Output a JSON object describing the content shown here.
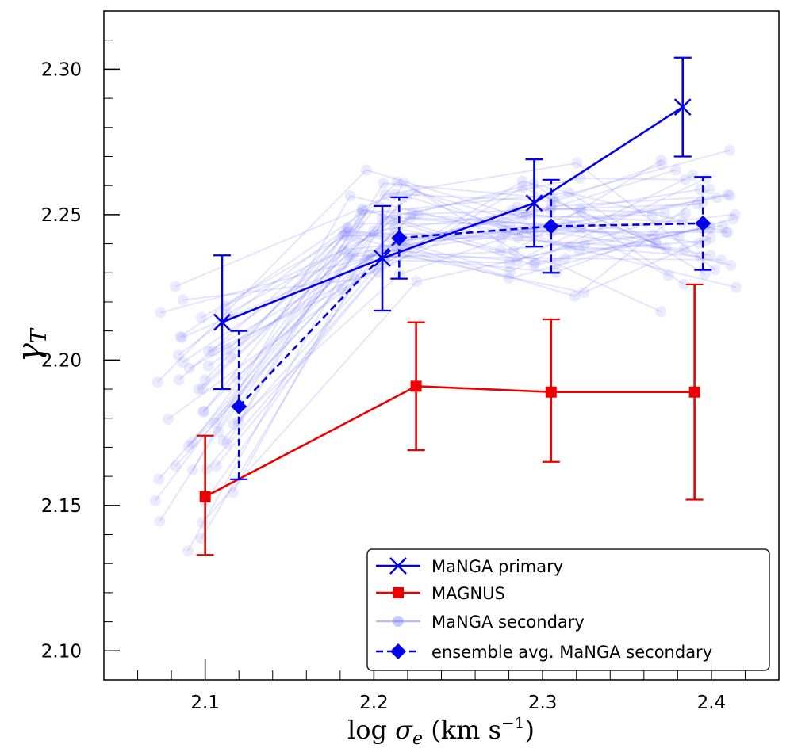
{
  "chart_data": {
    "type": "line",
    "xlabel": "log σ_e (km s^-1)",
    "xlabel_parts": {
      "pre": "log ",
      "sigma": "σ",
      "sub": "e",
      "units": " (km s",
      "exp": "−1",
      "close": ")"
    },
    "ylabel": "γ_T",
    "ylabel_parts": {
      "gamma": "γ",
      "sub": "T"
    },
    "xlim": [
      2.04,
      2.44
    ],
    "ylim": [
      2.09,
      2.32
    ],
    "x_ticks": [
      "2.1",
      "2.2",
      "2.3",
      "2.4"
    ],
    "y_ticks": [
      "2.10",
      "2.15",
      "2.20",
      "2.25",
      "2.30"
    ],
    "legend_position": "lower-right",
    "series": [
      {
        "name": "MaNGA primary",
        "color": "#0000ee",
        "marker": "x",
        "style": "solid",
        "x": [
          2.11,
          2.205,
          2.295,
          2.383
        ],
        "y": [
          2.213,
          2.235,
          2.254,
          2.287
        ],
        "err_low": [
          2.19,
          2.217,
          2.239,
          2.27
        ],
        "err_high": [
          2.236,
          2.253,
          2.269,
          2.304
        ]
      },
      {
        "name": "MAGNUS",
        "color": "#ee0000",
        "marker": "square",
        "style": "solid",
        "x": [
          2.1,
          2.225,
          2.305,
          2.39
        ],
        "y": [
          2.153,
          2.191,
          2.189,
          2.189
        ],
        "err_low": [
          2.133,
          2.169,
          2.165,
          2.152
        ],
        "err_high": [
          2.174,
          2.213,
          2.214,
          2.226
        ]
      },
      {
        "name": "MaNGA secondary",
        "color": "#6666ff",
        "marker": "circle",
        "style": "faint-bundle",
        "bins": [
          2.095,
          2.205,
          2.3,
          2.39
        ],
        "samples": 45,
        "ranges": [
          [
            2.12,
            2.24
          ],
          [
            2.215,
            2.275
          ],
          [
            2.212,
            2.281
          ],
          [
            2.213,
            2.289
          ]
        ]
      },
      {
        "name": "ensemble avg. MaNGA secondary",
        "color": "#0000ee",
        "marker": "diamond",
        "style": "dashed",
        "x": [
          2.12,
          2.215,
          2.305,
          2.395
        ],
        "y": [
          2.184,
          2.242,
          2.246,
          2.247
        ],
        "err_low": [
          2.159,
          2.228,
          2.23,
          2.231
        ],
        "err_high": [
          2.21,
          2.256,
          2.262,
          2.263
        ]
      }
    ]
  }
}
